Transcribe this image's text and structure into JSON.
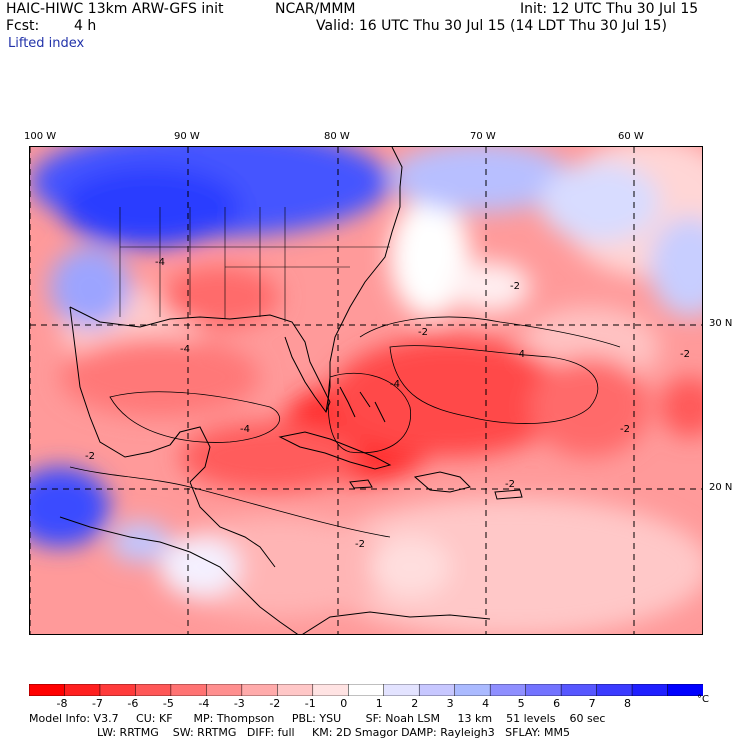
{
  "header": {
    "model_title": "HAIC-HIWC 13km ARW-GFS init",
    "org": "NCAR/MMM",
    "init": "Init: 12 UTC Thu 30 Jul 15",
    "fcst_label": "Fcst:",
    "fcst_value": "4 h",
    "valid": "Valid: 16 UTC Thu 30 Jul 15 (14 LDT Thu 30 Jul 15)",
    "field": "Lifted index"
  },
  "map": {
    "lon_labels": [
      "100 W",
      "90 W",
      "80 W",
      "70 W",
      "60 W"
    ],
    "lat_labels": [
      "30 N",
      "20 N"
    ],
    "contour_labels": [
      "-4",
      "-4",
      "-4",
      "-4",
      "-2",
      "-2",
      "-2",
      "-2",
      "-2",
      "-4",
      "-2",
      "-2"
    ]
  },
  "colorbar": {
    "ticks": [
      "-8",
      "-7",
      "-6",
      "-5",
      "-4",
      "-3",
      "-2",
      "-1",
      "0",
      "1",
      "2",
      "3",
      "4",
      "5",
      "6",
      "7",
      "8"
    ],
    "unit": "°C",
    "colors": [
      "#ff0000",
      "#ff1f1f",
      "#ff3b3b",
      "#ff5757",
      "#ff7373",
      "#ff8f8f",
      "#ffabab",
      "#ffc7c7",
      "#ffe3e3",
      "#ffffff",
      "#e3e3ff",
      "#c7c7ff",
      "#abbaff",
      "#8f8fff",
      "#7373ff",
      "#5757ff",
      "#3b3bff",
      "#1f1fff",
      "#0000ff"
    ]
  },
  "footer": {
    "line1": "Model Info: V3.7     CU: KF      MP: Thompson     PBL: YSU       SF: Noah LSM     13 km    51 levels    60 sec",
    "line2": "LW: RRTMG    SW: RRTMG   DIFF: full     KM: 2D Smagor DAMP: Rayleigh3   SFLAY: MM5"
  }
}
